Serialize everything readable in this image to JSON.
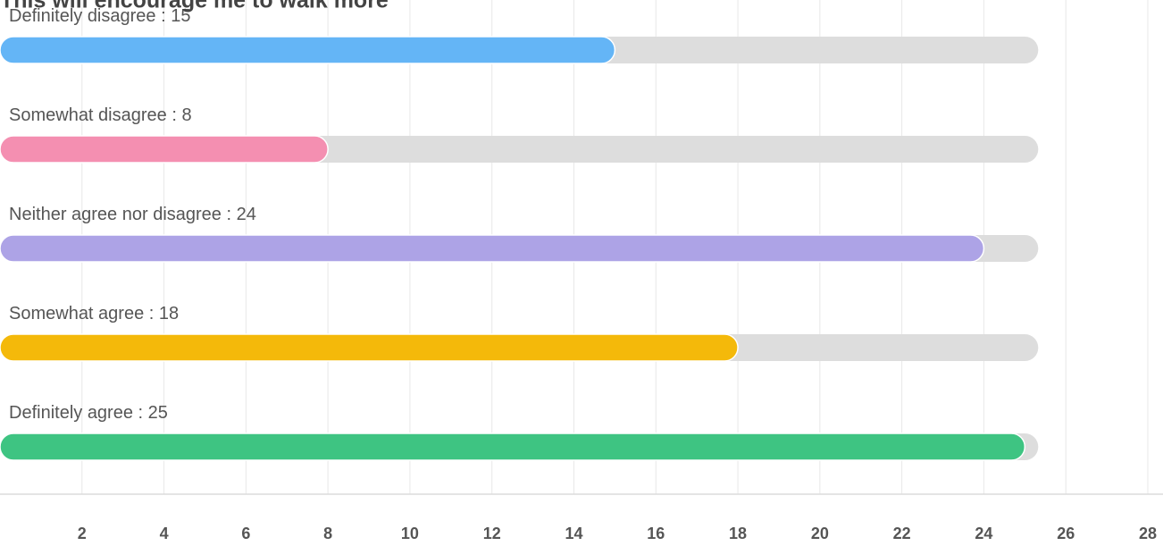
{
  "chart_data": {
    "type": "bar",
    "orientation": "horizontal",
    "title": "This will encourage me to walk more",
    "categories": [
      "Definitely disagree",
      "Somewhat disagree",
      "Neither agree nor disagree",
      "Somewhat agree",
      "Definitely agree"
    ],
    "values": [
      15,
      8,
      24,
      18,
      25
    ],
    "value_labels": [
      " : 15",
      " : 8",
      " : 24",
      " : 18",
      " : 25"
    ],
    "colors": [
      "#64b5f6",
      "#f48fb1",
      "#ada3e6",
      "#f4b90a",
      "#3ec482"
    ],
    "track_color": "#dddddd",
    "xlim": [
      0,
      28
    ],
    "xticks": [
      2,
      4,
      6,
      8,
      10,
      12,
      14,
      16,
      18,
      20,
      22,
      24,
      26,
      28
    ],
    "grid": true
  }
}
